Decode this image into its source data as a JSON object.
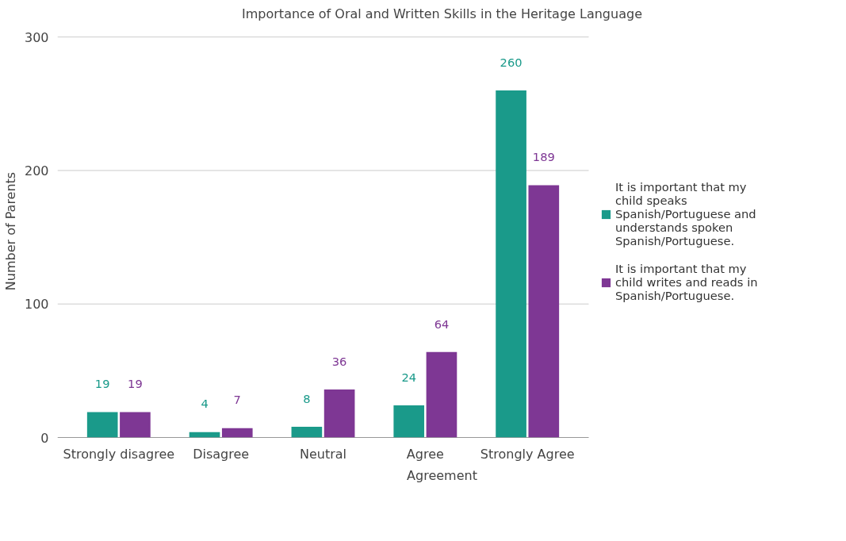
{
  "chart_data": {
    "type": "bar",
    "title": "Importance of Oral and Written Skills in the Heritage Language",
    "xlabel": "Agreement",
    "ylabel": "Number of Parents",
    "categories": [
      "Strongly disagree",
      "Disagree",
      "Neutral",
      "Agree",
      "Strongly Agree"
    ],
    "series": [
      {
        "name": "It is important that my child speaks Spanish/Portuguese and understands spoken Spanish/Portuguese.",
        "color": "#1a9a8a",
        "values": [
          19,
          4,
          8,
          24,
          260
        ]
      },
      {
        "name": "It is important that my child writes and reads in Spanish/Portuguese.",
        "color": "#7e3794",
        "values": [
          19,
          7,
          36,
          64,
          189
        ]
      }
    ],
    "ylim": [
      0,
      300
    ],
    "yticks": [
      0,
      100,
      200,
      300
    ],
    "grid": "y",
    "legend": "right",
    "data_labels": true
  }
}
